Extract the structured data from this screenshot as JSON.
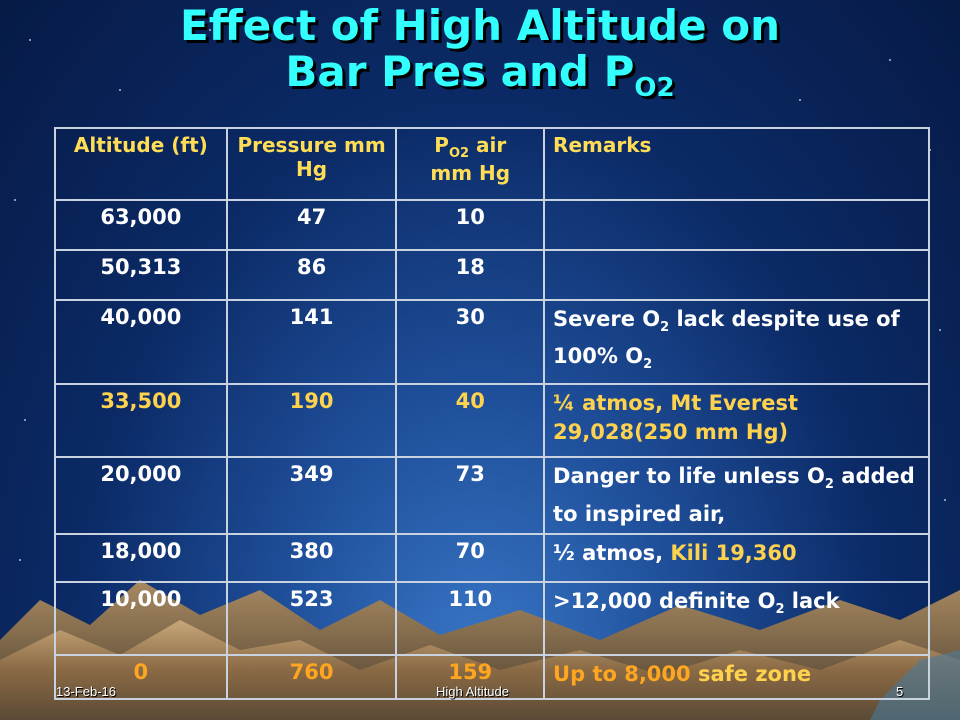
{
  "title": {
    "line1": "Effect of High Altitude on",
    "line2_main": "Bar Pres and  P",
    "line2_sub": "O2"
  },
  "table": {
    "headers": {
      "altitude": "Altitude (ft)",
      "pressure": "Pressure mm Hg",
      "po2_main": "P",
      "po2_sub": "O2",
      "po2_rest": " air",
      "po2_unit": "mm Hg",
      "remarks": "Remarks"
    },
    "rows": [
      {
        "altitude": "63,000",
        "pressure": "47",
        "po2": "10",
        "r1": "",
        "r2": "",
        "r3": "",
        "r4": ""
      },
      {
        "altitude": "50,313",
        "pressure": "86",
        "po2": "18",
        "r1": "",
        "r2": "",
        "r3": "",
        "r4": ""
      },
      {
        "altitude": "40,000",
        "pressure": "141",
        "po2": "30",
        "r1": "Severe O",
        "r2": "2",
        "r3": " lack despite use of 100% O",
        "r4": "2"
      },
      {
        "altitude": "33,500",
        "pressure": "190",
        "po2": "40",
        "r1": "¼ atmos, Mt Everest 29,028(250 mm Hg)",
        "r2": "",
        "r3": "",
        "r4": ""
      },
      {
        "altitude": "20,000",
        "pressure": "349",
        "po2": "73",
        "r1": "Danger to life unless O",
        "r2": "2",
        "r3": " added to inspired air,",
        "r4": ""
      },
      {
        "altitude": "18,000",
        "pressure": "380",
        "po2": "70",
        "r1": "½ atmos, ",
        "r2": "Kili 19,360",
        "r3": "",
        "r4": ""
      },
      {
        "altitude": "10,000",
        "pressure": "523",
        "po2": "110",
        "r1": ">12,000 definite O",
        "r2": "2",
        "r3": " lack",
        "r4": ""
      },
      {
        "altitude": "0",
        "pressure": "760",
        "po2": "159",
        "r1": "Up to 8,000 ",
        "r2": "safe zone",
        "r3": "",
        "r4": ""
      }
    ]
  },
  "footer": {
    "date": "13-Feb-16",
    "topic": "High Altitude",
    "page": "5"
  },
  "colors": {
    "title": "#33ffff",
    "header_text": "#ffdd55",
    "body_text": "#ffffff",
    "highlight_yellow": "#ffd24d",
    "highlight_orange": "#ffa620"
  }
}
